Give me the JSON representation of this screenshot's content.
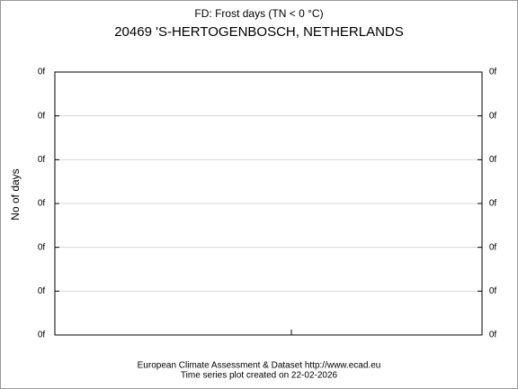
{
  "chart_data": {
    "type": "line",
    "title": "FD: Frost days (TN < 0 °C)",
    "subtitle": "20469 'S-HERTOGENBOSCH, NETHERLANDS",
    "ylabel": "No of days",
    "footer": [
      "European Climate Assessment & Dataset  http://www.ecad.eu",
      "Time series plot created on 22-02-2026"
    ],
    "series": [],
    "ylim": [
      0,
      6
    ],
    "yticks": [
      {
        "value": 0,
        "label": "0f"
      },
      {
        "value": 1,
        "label": "0f"
      },
      {
        "value": 2,
        "label": "0f"
      },
      {
        "value": 3,
        "label": "0f"
      },
      {
        "value": 4,
        "label": "0f"
      },
      {
        "value": 5,
        "label": "0f"
      },
      {
        "value": 6,
        "label": "0f"
      }
    ],
    "grid": true
  }
}
